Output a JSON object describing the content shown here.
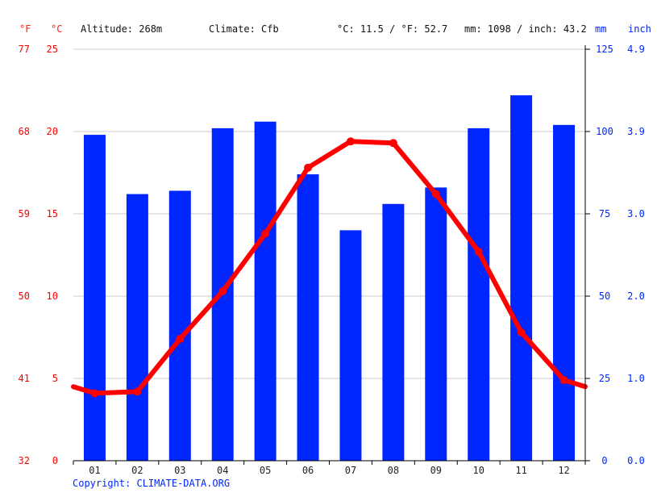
{
  "header": {
    "unit_f": "°F",
    "unit_c": "°C",
    "altitude": "Altitude: 268m",
    "climate": "Climate: Cfb",
    "temp_avg": "°C: 11.5 / °F: 52.7",
    "precip_total": "mm: 1098 / inch: 43.2",
    "unit_mm": "mm",
    "unit_inch": "inch"
  },
  "copyright": "Copyright: CLIMATE-DATA.ORG",
  "colors": {
    "temperature": "#ff0000",
    "precipitation": "#0026ff",
    "grid": "#c8c8c8"
  },
  "chart_data": {
    "type": "bar",
    "categories": [
      "01",
      "02",
      "03",
      "04",
      "05",
      "06",
      "07",
      "08",
      "09",
      "10",
      "11",
      "12"
    ],
    "series": [
      {
        "type": "bar",
        "axis": "right",
        "values": [
          99,
          81,
          82,
          101,
          103,
          87,
          70,
          78,
          83,
          101,
          111,
          102
        ]
      },
      {
        "type": "line",
        "axis": "left",
        "values": [
          4.1,
          4.2,
          7.4,
          10.3,
          13.8,
          17.8,
          19.4,
          19.3,
          16.2,
          12.7,
          7.8,
          4.9
        ]
      }
    ],
    "y_left_c": {
      "ticks": [
        0,
        5,
        10,
        15,
        20,
        25
      ],
      "ylim": [
        0,
        25
      ]
    },
    "y_left_f": {
      "ticks": [
        32,
        41,
        50,
        59,
        68,
        77
      ]
    },
    "y_right_mm": {
      "ticks": [
        0,
        25,
        50,
        75,
        100,
        125
      ],
      "ylim": [
        0,
        125
      ]
    },
    "y_right_inch": {
      "ticks": [
        "0.0",
        "1.0",
        "2.0",
        "3.0",
        "3.9",
        "4.9"
      ]
    },
    "line_extend": {
      "left_edge": 4.5,
      "right_edge": 4.5
    },
    "grid": true
  }
}
